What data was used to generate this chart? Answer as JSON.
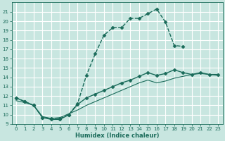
{
  "xlabel": "Humidex (Indice chaleur)",
  "bg_color": "#c8e6e0",
  "grid_color": "#b0d4cc",
  "line_color": "#1a6b5a",
  "xlim": [
    -0.5,
    23.5
  ],
  "ylim": [
    9,
    22
  ],
  "yticks": [
    9,
    10,
    11,
    12,
    13,
    14,
    15,
    16,
    17,
    18,
    19,
    20,
    21
  ],
  "xticks": [
    0,
    1,
    2,
    3,
    4,
    5,
    6,
    7,
    8,
    9,
    10,
    11,
    12,
    13,
    14,
    15,
    16,
    17,
    18,
    19,
    20,
    21,
    22,
    23
  ],
  "lines": [
    {
      "x": [
        0,
        1,
        2,
        3,
        4,
        5,
        6,
        7,
        8,
        9,
        10,
        11,
        12,
        13,
        14,
        15,
        16,
        17,
        18,
        19
      ],
      "y": [
        11.8,
        11.4,
        11.0,
        9.7,
        9.6,
        9.6,
        10.0,
        11.2,
        14.2,
        16.5,
        18.5,
        19.3,
        19.3,
        20.3,
        20.3,
        20.8,
        21.3,
        19.9,
        17.4,
        17.3
      ],
      "marker": "D",
      "markersize": 2.5,
      "linewidth": 1.0,
      "linestyle": "--"
    },
    {
      "x": [
        0,
        1,
        2,
        3,
        4,
        5,
        6,
        7,
        8,
        9,
        10,
        11,
        12,
        13,
        14,
        15,
        16,
        17,
        18,
        19,
        20,
        21,
        22,
        23
      ],
      "y": [
        11.8,
        11.4,
        11.0,
        9.7,
        9.5,
        9.5,
        10.0,
        11.1,
        11.8,
        12.2,
        12.6,
        13.0,
        13.4,
        13.7,
        14.1,
        14.5,
        14.2,
        14.4,
        14.8,
        14.5,
        14.3,
        14.5,
        14.3,
        14.3
      ],
      "marker": "D",
      "markersize": 2.5,
      "linewidth": 1.0,
      "linestyle": "-"
    },
    {
      "x": [
        0,
        1,
        2,
        3,
        4,
        5,
        6,
        7,
        8,
        9,
        10,
        11,
        12,
        13,
        14,
        15,
        16,
        17,
        18,
        19,
        20,
        21,
        22,
        23
      ],
      "y": [
        11.5,
        11.3,
        11.0,
        9.8,
        9.6,
        9.7,
        10.1,
        10.5,
        11.0,
        11.4,
        11.8,
        12.2,
        12.6,
        13.0,
        13.4,
        13.7,
        13.4,
        13.6,
        13.9,
        14.1,
        14.3,
        14.4,
        14.3,
        14.2
      ],
      "marker": null,
      "markersize": 0,
      "linewidth": 0.8,
      "linestyle": "-"
    }
  ]
}
